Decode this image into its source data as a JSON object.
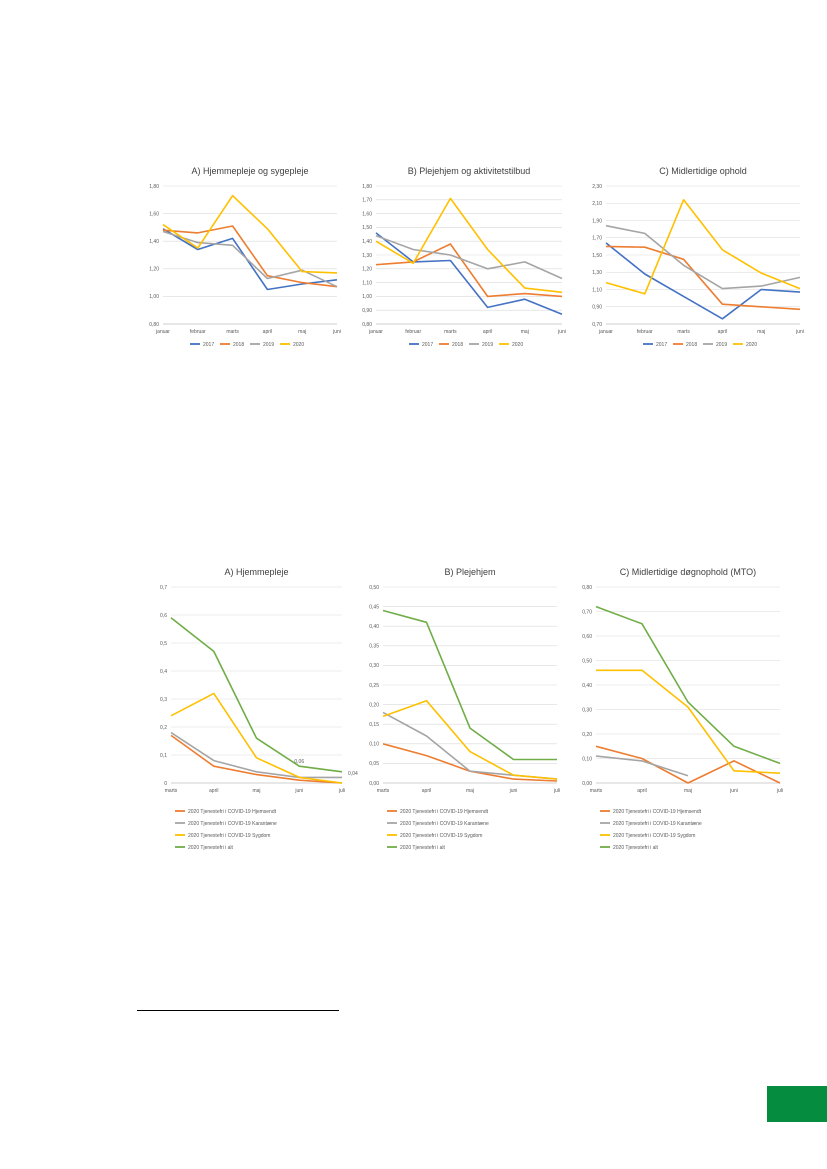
{
  "colors": {
    "orange": "#ed7d31",
    "gray": "#a5a5a5",
    "yellow": "#ffc000",
    "blue": "#4472c4",
    "green": "#70ad47",
    "page_accent": "#058c3e"
  },
  "charts_top": [
    {
      "id": "A-top",
      "chart_data": {
        "type": "line",
        "title": "A) Hjemmepleje og sygepleje",
        "categories": [
          "januar",
          "februar",
          "marts",
          "april",
          "maj",
          "juni"
        ],
        "ylim": [
          0.8,
          1.8
        ],
        "yticks": [
          "0,80",
          "1,00",
          "1,20",
          "1,40",
          "1,60",
          "1,80"
        ],
        "legend_position": "bottom",
        "series": [
          {
            "name": "2017",
            "color": "#4472c4",
            "values": [
              1.49,
              1.34,
              1.42,
              1.05,
              1.09,
              1.12
            ]
          },
          {
            "name": "2018",
            "color": "#ed7d31",
            "values": [
              1.48,
              1.46,
              1.51,
              1.15,
              1.1,
              1.07
            ]
          },
          {
            "name": "2019",
            "color": "#a5a5a5",
            "values": [
              1.47,
              1.39,
              1.37,
              1.13,
              1.19,
              1.07
            ]
          },
          {
            "name": "2020",
            "color": "#ffc000",
            "values": [
              1.52,
              1.35,
              1.73,
              1.49,
              1.18,
              1.17
            ]
          }
        ]
      }
    },
    {
      "id": "B-top",
      "chart_data": {
        "type": "line",
        "title": "B) Plejehjem og aktivitetstilbud",
        "categories": [
          "januar",
          "februar",
          "marts",
          "april",
          "maj",
          "juni"
        ],
        "ylim": [
          0.8,
          1.8
        ],
        "yticks": [
          "0,80",
          "0,90",
          "1,00",
          "1,10",
          "1,20",
          "1,30",
          "1,40",
          "1,50",
          "1,60",
          "1,70",
          "1,80"
        ],
        "legend_position": "bottom",
        "series": [
          {
            "name": "2017",
            "color": "#4472c4",
            "values": [
              1.46,
              1.25,
              1.26,
              0.92,
              0.98,
              0.87
            ]
          },
          {
            "name": "2018",
            "color": "#ed7d31",
            "values": [
              1.23,
              1.25,
              1.38,
              1.0,
              1.02,
              1.0
            ]
          },
          {
            "name": "2019",
            "color": "#a5a5a5",
            "values": [
              1.44,
              1.34,
              1.3,
              1.2,
              1.25,
              1.13
            ]
          },
          {
            "name": "2020",
            "color": "#ffc000",
            "values": [
              1.4,
              1.24,
              1.71,
              1.34,
              1.06,
              1.03
            ]
          }
        ]
      }
    },
    {
      "id": "C-top",
      "chart_data": {
        "type": "line",
        "title": "C) Midlertidige ophold",
        "categories": [
          "januar",
          "februar",
          "marts",
          "april",
          "maj",
          "juni"
        ],
        "ylim": [
          0.7,
          2.3
        ],
        "yticks": [
          "0,70",
          "0,90",
          "1,10",
          "1,30",
          "1,50",
          "1,70",
          "1,90",
          "2,10",
          "2,30"
        ],
        "legend_position": "bottom",
        "series": [
          {
            "name": "2017",
            "color": "#4472c4",
            "values": [
              1.64,
              1.28,
              1.02,
              0.76,
              1.1,
              1.07
            ]
          },
          {
            "name": "2018",
            "color": "#ed7d31",
            "values": [
              1.6,
              1.59,
              1.45,
              0.93,
              0.9,
              0.87
            ]
          },
          {
            "name": "2019",
            "color": "#a5a5a5",
            "values": [
              1.84,
              1.75,
              1.38,
              1.11,
              1.14,
              1.24
            ]
          },
          {
            "name": "2020",
            "color": "#ffc000",
            "values": [
              1.18,
              1.05,
              2.14,
              1.56,
              1.29,
              1.11
            ]
          }
        ]
      }
    }
  ],
  "charts_bottom": [
    {
      "id": "A-bottom",
      "chart_data": {
        "type": "line",
        "title": "A) Hjemmepleje",
        "categories": [
          "marts",
          "april",
          "maj",
          "juni",
          "juli"
        ],
        "ylim": [
          0,
          0.7
        ],
        "yticks": [
          "0",
          "0,1",
          "0,2",
          "0,3",
          "0,4",
          "0,5",
          "0,6",
          "0,7"
        ],
        "legend_position": "bottom",
        "series": [
          {
            "name": "2020 Tjenestefri i COVID-19 Hjemsendt",
            "color": "#ed7d31",
            "values": [
              0.17,
              0.06,
              0.03,
              0.01,
              0.0
            ]
          },
          {
            "name": "2020 Tjenestefri i COVID-19 Karantæne",
            "color": "#a5a5a5",
            "values": [
              0.18,
              0.08,
              0.04,
              0.02,
              0.02
            ]
          },
          {
            "name": "2020 Tjenestefri i COVID-19 Sygdom",
            "color": "#ffc000",
            "values": [
              0.24,
              0.32,
              0.09,
              0.02,
              0.0
            ]
          },
          {
            "name": "2020 Tjenestefri i alt",
            "color": "#70ad47",
            "values": [
              0.59,
              0.47,
              0.16,
              0.06,
              0.04
            ]
          }
        ],
        "data_labels": [
          "0,06",
          "0,04"
        ]
      }
    },
    {
      "id": "B-bottom",
      "chart_data": {
        "type": "line",
        "title": "B) Plejehjem",
        "categories": [
          "marts",
          "april",
          "maj",
          "juni",
          "juli"
        ],
        "ylim": [
          0,
          0.5
        ],
        "yticks": [
          "0,00",
          "0,05",
          "0,10",
          "0,15",
          "0,20",
          "0,25",
          "0,30",
          "0,35",
          "0,40",
          "0,45",
          "0,50"
        ],
        "legend_position": "bottom",
        "series": [
          {
            "name": "2020 Tjenestefri i COVID-19 Hjemsendt",
            "color": "#ed7d31",
            "values": [
              0.1,
              0.07,
              0.03,
              0.01,
              0.005
            ]
          },
          {
            "name": "2020 Tjenestefri i COVID-19 Karantæne",
            "color": "#a5a5a5",
            "values": [
              0.18,
              0.12,
              0.03,
              0.02,
              0.01
            ]
          },
          {
            "name": "2020 Tjenestefri i COVID-19 Sygdom",
            "color": "#ffc000",
            "values": [
              0.17,
              0.21,
              0.08,
              0.02,
              0.01
            ]
          },
          {
            "name": "2020 Tjenestefri i alt",
            "color": "#70ad47",
            "values": [
              0.44,
              0.41,
              0.14,
              0.06,
              0.06
            ]
          }
        ]
      }
    },
    {
      "id": "C-bottom",
      "chart_data": {
        "type": "line",
        "title": "C) Midlertidige døgnophold (MTO)",
        "categories": [
          "marts",
          "april",
          "maj",
          "juni",
          "juli"
        ],
        "ylim": [
          0,
          0.8
        ],
        "yticks": [
          "0,00",
          "0,10",
          "0,20",
          "0,30",
          "0,40",
          "0,50",
          "0,60",
          "0,70",
          "0,80"
        ],
        "legend_position": "bottom",
        "series": [
          {
            "name": "2020 Tjenestefri i COVID-19 Hjemsendt",
            "color": "#ed7d31",
            "values": [
              0.15,
              0.1,
              0.0,
              0.09,
              0.0
            ]
          },
          {
            "name": "2020 Tjenestefri i COVID-19 Karantæne",
            "color": "#a5a5a5",
            "values": [
              0.11,
              0.09,
              0.03,
              null,
              null
            ]
          },
          {
            "name": "2020 Tjenestefri i COVID-19 Sygdom",
            "color": "#ffc000",
            "values": [
              0.46,
              0.46,
              0.31,
              0.05,
              0.04
            ]
          },
          {
            "name": "2020 Tjenestefri i alt",
            "color": "#70ad47",
            "values": [
              0.72,
              0.65,
              0.33,
              0.15,
              0.08
            ]
          }
        ]
      }
    }
  ]
}
